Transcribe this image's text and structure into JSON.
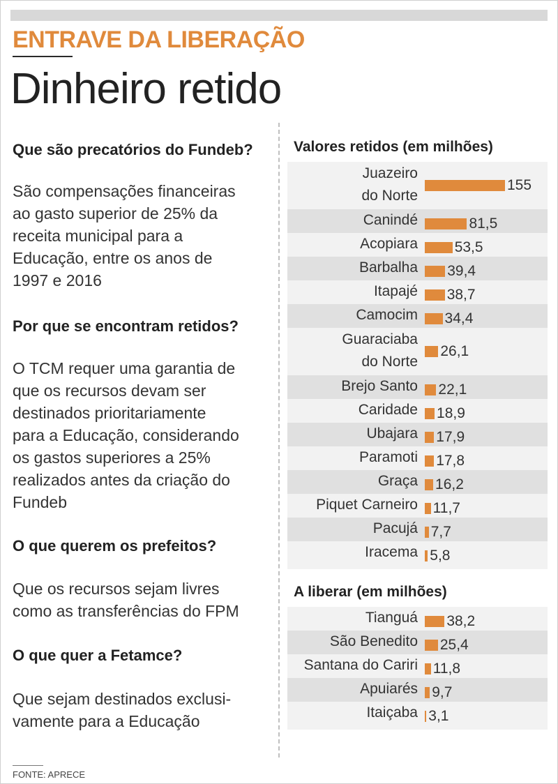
{
  "header": {
    "kicker": "ENTRAVE DA LIBERAÇÃO",
    "headline": "Dinheiro retido"
  },
  "faq": [
    {
      "question": "Que são precatórios do Fundeb?",
      "answer": "São compensações financeiras\nao gasto superior de 25% da\nreceita municipal para a\nEducação, entre os anos de\n1997 e 2016"
    },
    {
      "question": "Por que se encontram retidos?",
      "answer": "O TCM requer uma garantia de\nque os recursos devam ser\ndestinados prioritariamente\npara a Educação, considerando\nos gastos superiores a 25%\nrealizados antes da criação do\nFundeb"
    },
    {
      "question": "O que querem os prefeitos?",
      "answer": "Que os recursos sejam livres\ncomo as transferências do FPM"
    },
    {
      "question": "O que quer a Fetamce?",
      "answer": "Que sejam destinados exclusi-\nvamente para a Educação"
    }
  ],
  "chart_data": [
    {
      "type": "bar",
      "orientation": "horizontal",
      "title": "Valores retidos (em milhões)",
      "categories": [
        "Juazeiro\ndo Norte",
        "Canindé",
        "Acopiara",
        "Barbalha",
        "Itapajé",
        "Camocim",
        "Guaraciaba\ndo Norte",
        "Brejo Santo",
        "Caridade",
        "Ubajara",
        "Paramoti",
        "Graça",
        "Piquet Carneiro",
        "Pacujá",
        "Iracema"
      ],
      "values": [
        155,
        81.5,
        53.5,
        39.4,
        38.7,
        34.4,
        26.1,
        22.1,
        18.9,
        17.9,
        17.8,
        16.2,
        11.7,
        7.7,
        5.8
      ],
      "value_labels": [
        "155",
        "81,5",
        "53,5",
        "39,4",
        "38,7",
        "34,4",
        "26,1",
        "22,1",
        "18,9",
        "17,9",
        "17,8",
        "16,2",
        "11,7",
        "7,7",
        "5,8"
      ],
      "bar_color": "#e08a3c",
      "xlim": [
        0,
        155
      ]
    },
    {
      "type": "bar",
      "orientation": "horizontal",
      "title": "A liberar (em milhões)",
      "categories": [
        "Tianguá",
        "São Benedito",
        "Santana do Cariri",
        "Apuiarés",
        "Itaiçaba"
      ],
      "values": [
        38.2,
        25.4,
        11.8,
        9.7,
        3.1
      ],
      "value_labels": [
        "38,2",
        "25,4",
        "11,8",
        "9,7",
        "3,1"
      ],
      "bar_color": "#e08a3c",
      "xlim": [
        0,
        155
      ]
    }
  ],
  "source": "FONTE: APRECE"
}
